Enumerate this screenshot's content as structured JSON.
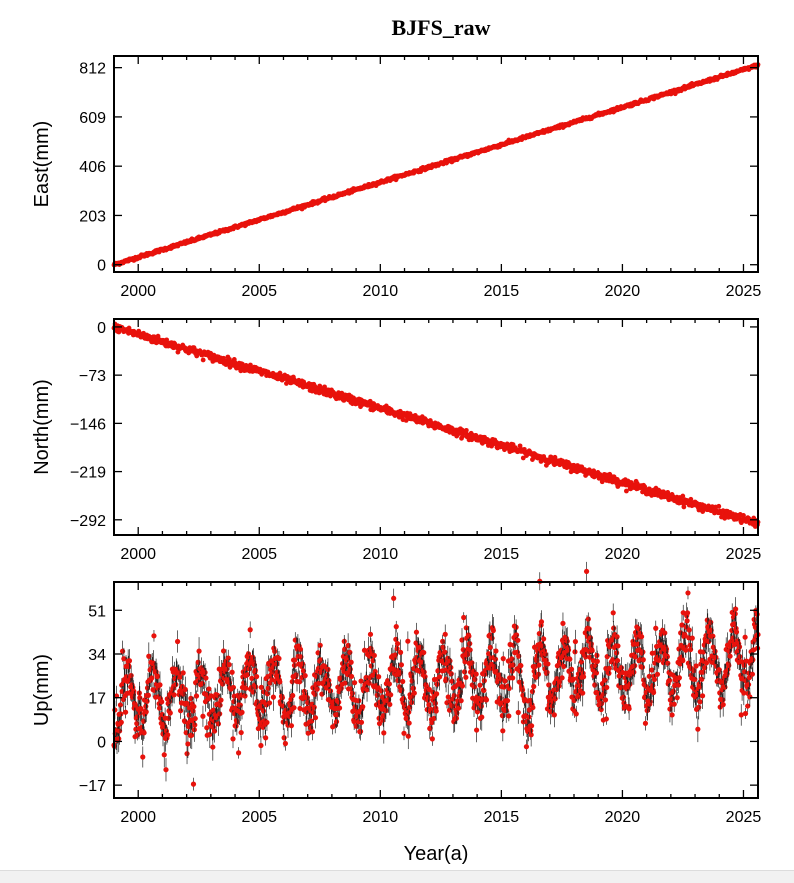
{
  "colors": {
    "points": "#e8120c",
    "error_bars": "#222222",
    "frame": "#000000"
  },
  "chart_data": {
    "title": "BJFS_raw",
    "xlabel": "Year(a)",
    "xlim": [
      1999.0,
      2025.6
    ],
    "xticks": [
      2000,
      2005,
      2010,
      2015,
      2020,
      2025
    ],
    "panels": [
      {
        "type": "scatter",
        "name": "east",
        "ylabel": "East(mm)",
        "ylim": [
          -30,
          860
        ],
        "yticks": [
          0,
          203,
          406,
          609,
          812
        ],
        "trend": {
          "start": [
            1999.0,
            0
          ],
          "end": [
            2025.6,
            822
          ]
        },
        "noise_mm": 3,
        "error_bars": false,
        "grid": false
      },
      {
        "type": "scatter",
        "name": "north",
        "ylabel": "North(mm)",
        "ylim": [
          -315,
          12
        ],
        "yticks": [
          0,
          -73,
          -146,
          -219,
          -292
        ],
        "trend": {
          "start": [
            1999.0,
            0
          ],
          "end": [
            2025.6,
            -298
          ]
        },
        "noise_mm": 3,
        "error_bars": false,
        "grid": false
      },
      {
        "type": "scatter",
        "name": "up",
        "ylabel": "Up(mm)",
        "ylim": [
          -22,
          62
        ],
        "yticks": [
          -17,
          0,
          17,
          34,
          51
        ],
        "trend": {
          "start": [
            1999.0,
            15
          ],
          "end": [
            2025.6,
            32
          ]
        },
        "annual_amplitude_mm": 11,
        "noise_mm": 5,
        "error_bars": true,
        "grid": false
      }
    ]
  }
}
